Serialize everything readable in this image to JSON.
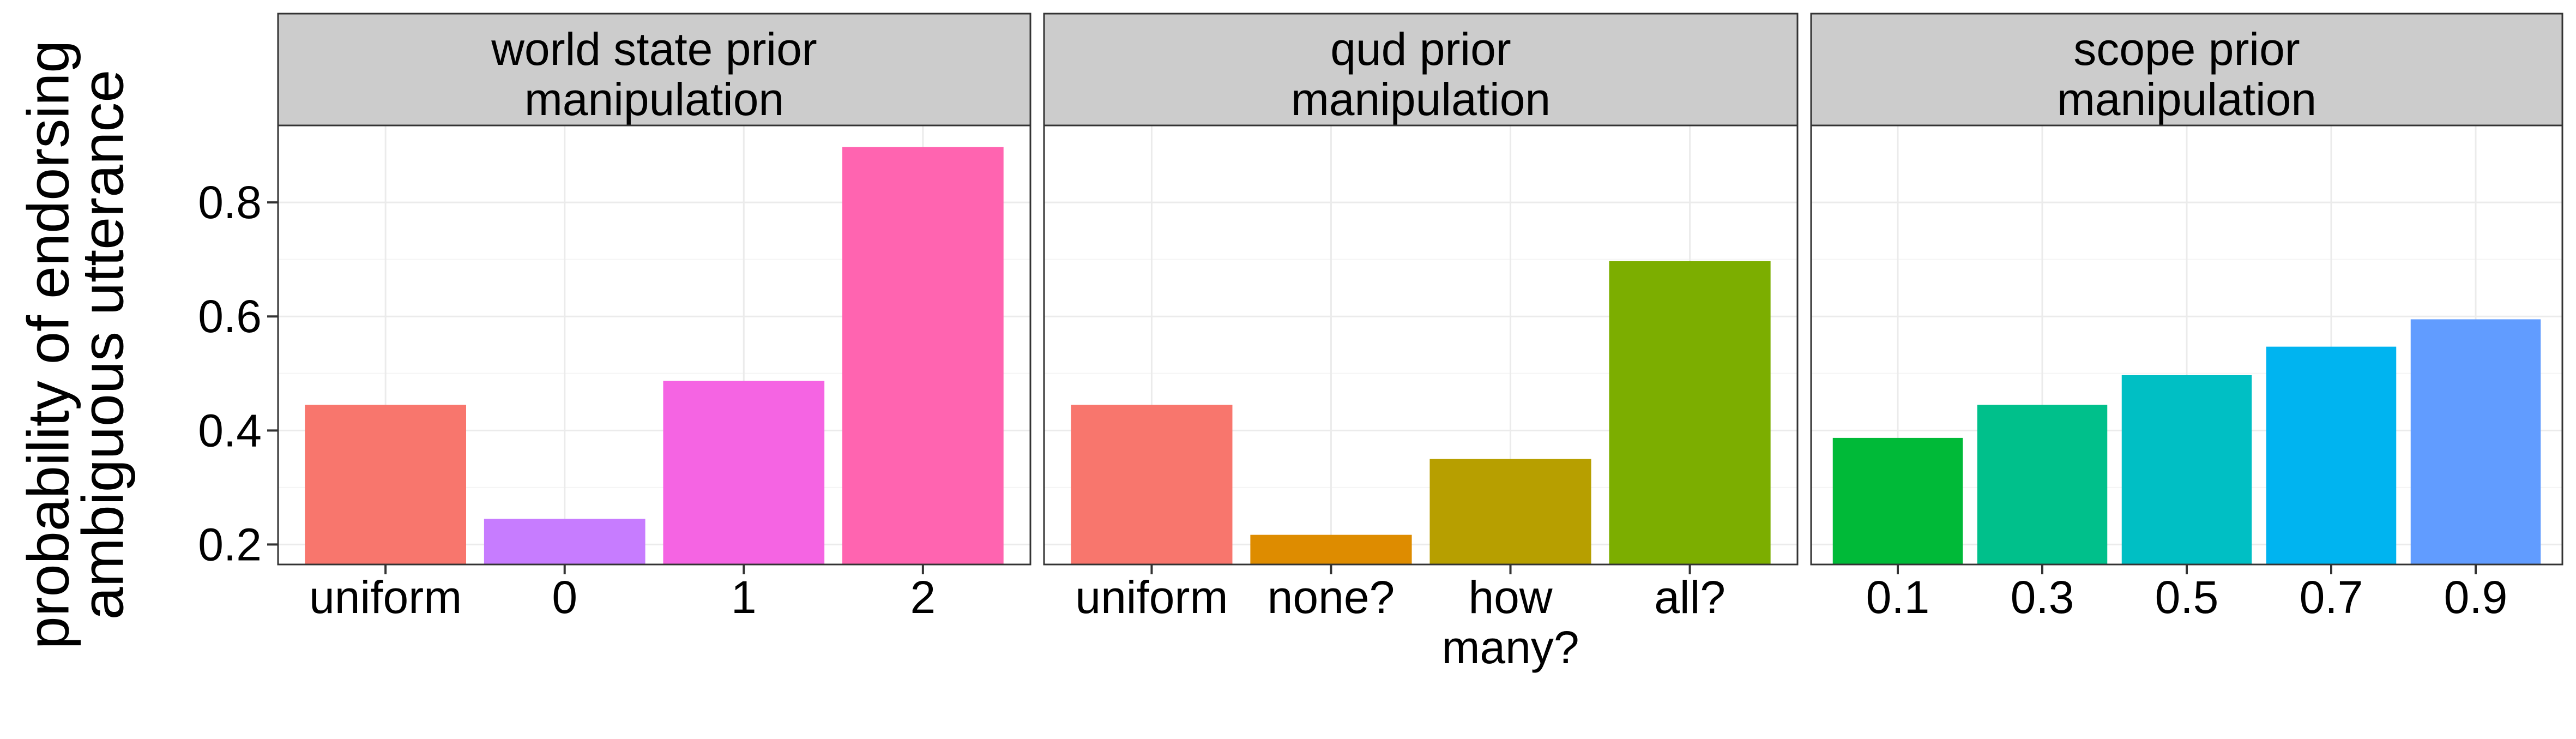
{
  "chart_data": {
    "type": "bar",
    "ylabel": [
      "probability of endorsing",
      "ambiguous utterance"
    ],
    "xlabel": "",
    "ylim": [
      0.165,
      0.935
    ],
    "yticks": [
      0.2,
      0.4,
      0.6,
      0.8
    ],
    "ytick_labels": [
      "0.2",
      "0.4",
      "0.6",
      "0.8"
    ],
    "grid": true,
    "legend": "none",
    "panels": [
      {
        "title": [
          "world state prior",
          "manipulation"
        ],
        "categories": [
          [
            "uniform"
          ],
          [
            "0"
          ],
          [
            "1"
          ],
          [
            "2"
          ]
        ],
        "values": [
          0.445,
          0.245,
          0.487,
          0.897
        ],
        "colors": [
          "#F8766D",
          "#C77CFF",
          "#F564E3",
          "#FF64B0"
        ]
      },
      {
        "title": [
          "qud prior",
          "manipulation"
        ],
        "categories": [
          [
            "uniform"
          ],
          [
            "none?"
          ],
          [
            "how",
            "many?"
          ],
          [
            "all?"
          ]
        ],
        "values": [
          0.445,
          0.217,
          0.35,
          0.697
        ],
        "colors": [
          "#F8766D",
          "#DE8C00",
          "#B79F00",
          "#7CAE00"
        ]
      },
      {
        "title": [
          "scope prior",
          "manipulation"
        ],
        "categories": [
          [
            "0.1"
          ],
          [
            "0.3"
          ],
          [
            "0.5"
          ],
          [
            "0.7"
          ],
          [
            "0.9"
          ]
        ],
        "values": [
          0.387,
          0.445,
          0.497,
          0.547,
          0.595
        ],
        "colors": [
          "#00BA38",
          "#00C08B",
          "#00BFC4",
          "#00B4F0",
          "#619CFF"
        ]
      }
    ]
  }
}
